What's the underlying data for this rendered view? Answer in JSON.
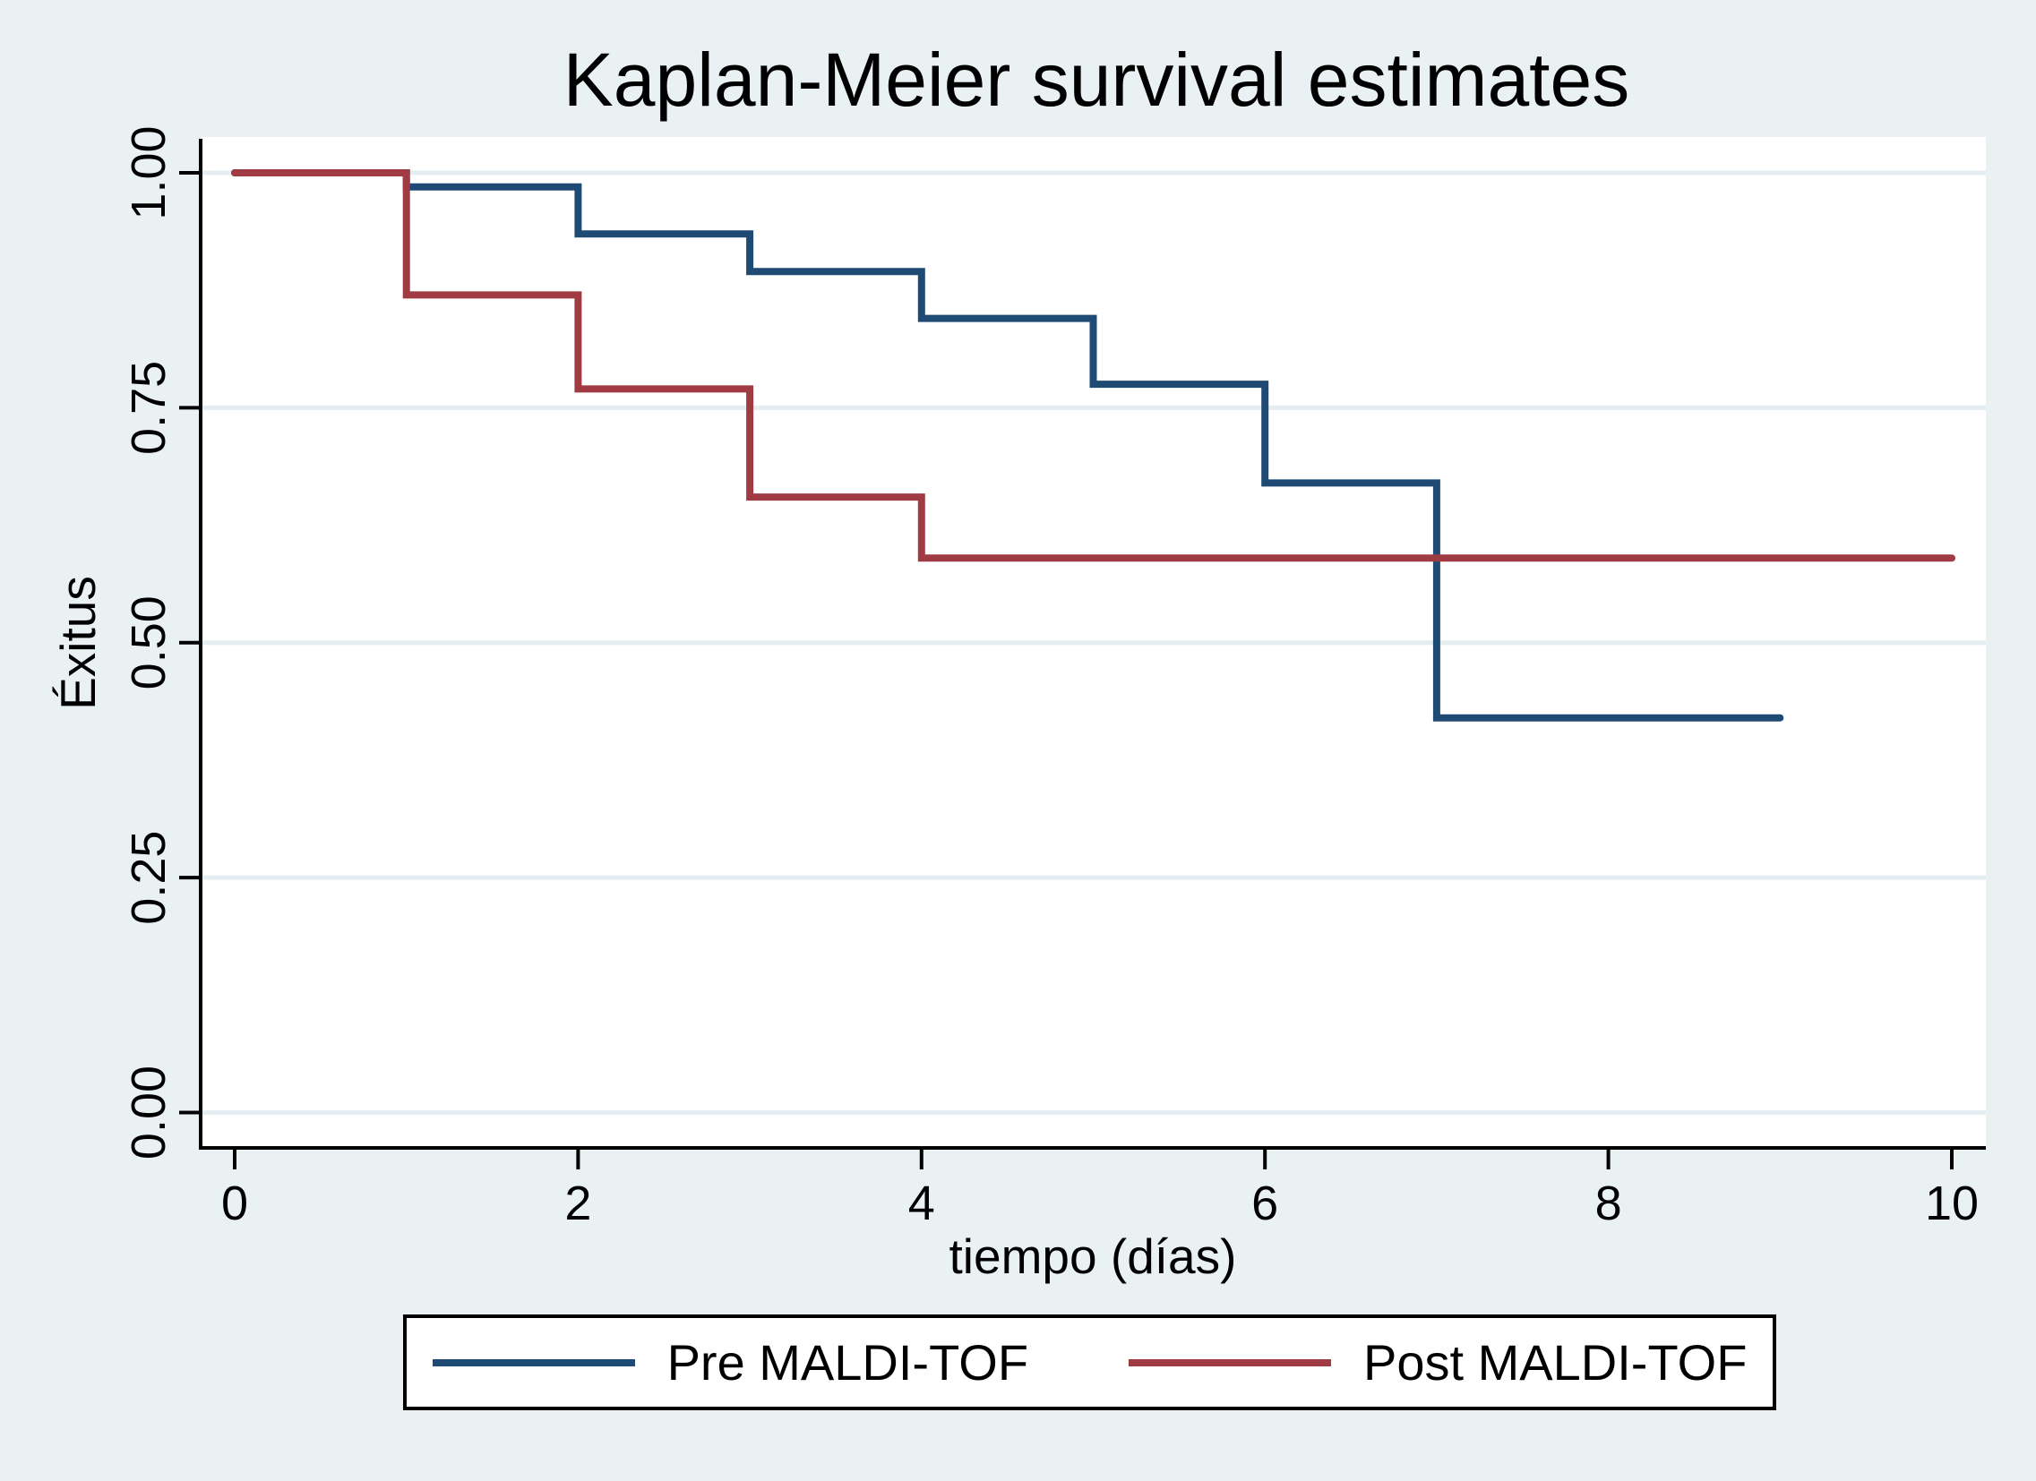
{
  "title": "Kaplan-Meier survival estimates",
  "chart_data": {
    "type": "line",
    "subtype": "step-survival",
    "title": "Kaplan-Meier survival estimates",
    "xlabel": "tiempo (días)",
    "ylabel": "Éxitus",
    "xlim": [
      0,
      10
    ],
    "ylim": [
      0,
      1
    ],
    "x_ticks": [
      0,
      2,
      4,
      6,
      8,
      10
    ],
    "x_tick_labels": [
      "0",
      "2",
      "4",
      "6",
      "8",
      "10"
    ],
    "y_ticks": [
      0,
      0.25,
      0.5,
      0.75,
      1
    ],
    "y_tick_labels": [
      "0.00",
      "0.25",
      "0.50",
      "0.75",
      "1.00"
    ],
    "grid": "horizontal",
    "legend_position": "bottom",
    "series": [
      {
        "name": "Pre MALDI-TOF",
        "color": "#1e4a73",
        "x": [
          0,
          1,
          2,
          3,
          4,
          5,
          6,
          7,
          9
        ],
        "y": [
          1.0,
          0.985,
          0.935,
          0.895,
          0.845,
          0.775,
          0.67,
          0.42,
          0.42
        ]
      },
      {
        "name": "Post MALDI-TOF",
        "color": "#a03b44",
        "x": [
          0,
          1,
          2,
          3,
          4,
          10
        ],
        "y": [
          1.0,
          0.87,
          0.77,
          0.655,
          0.59,
          0.59
        ]
      }
    ],
    "colors": {
      "background": "#eaf1f3",
      "plot_background": "#ffffff",
      "grid": "#e4edf2",
      "axis": "#000000",
      "title": "#243a64",
      "text": "#000000"
    }
  }
}
